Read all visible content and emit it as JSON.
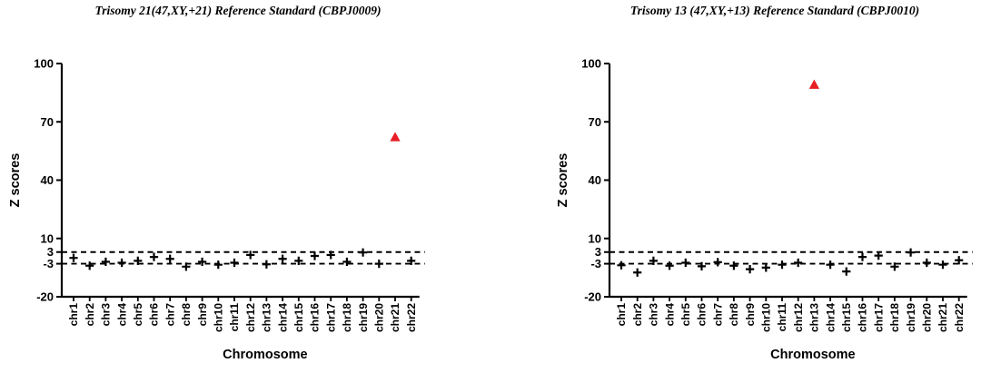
{
  "page": {
    "background": "#ffffff",
    "text_color": "#000000"
  },
  "chart_data": [
    {
      "type": "scatter",
      "title": "Trisomy 21(47,XY,+21) Reference Standard (CBPJ0009)",
      "xlabel": "Chromosome",
      "ylabel": "Z scores",
      "ylim": [
        -20,
        100
      ],
      "yticks": [
        100,
        70,
        40,
        10,
        3,
        -3,
        -20
      ],
      "threshold_lines": [
        3,
        -3
      ],
      "grid": false,
      "legend": "none",
      "categories": [
        "chr1",
        "chr2",
        "chr3",
        "chr4",
        "chr5",
        "chr6",
        "chr7",
        "chr8",
        "chr9",
        "chr10",
        "chr11",
        "chr12",
        "chr13",
        "chr14",
        "chr15",
        "chr16",
        "chr17",
        "chr18",
        "chr19",
        "chr20",
        "chr21",
        "chr22"
      ],
      "trisomy": {
        "chromosome": "chr21",
        "z_score": 62
      },
      "series": [
        {
          "name": "autosome-z-scores",
          "marker": "plus",
          "color": "#000000",
          "values": [
            0,
            -4,
            -2,
            -2.5,
            -1.5,
            0.5,
            -0.5,
            -4.5,
            -2,
            -3.5,
            -2.5,
            1.5,
            -3.3,
            -0.5,
            -1.5,
            1,
            1.5,
            -2,
            2.8,
            -3,
            null,
            -1.5
          ]
        },
        {
          "name": "trisomy-chromosome",
          "marker": "triangle",
          "color": "#e81e25",
          "values": [
            null,
            null,
            null,
            null,
            null,
            null,
            null,
            null,
            null,
            null,
            null,
            null,
            null,
            null,
            null,
            null,
            null,
            null,
            null,
            null,
            62,
            null
          ]
        }
      ]
    },
    {
      "type": "scatter",
      "title": "Trisomy 13 (47,XY,+13) Reference Standard (CBPJ0010)",
      "xlabel": "Chromosome",
      "ylabel": "Z scores",
      "ylim": [
        -20,
        100
      ],
      "yticks": [
        100,
        70,
        40,
        10,
        3,
        -3,
        -20
      ],
      "threshold_lines": [
        3,
        -3
      ],
      "grid": false,
      "legend": "none",
      "categories": [
        "chr1",
        "chr2",
        "chr3",
        "chr4",
        "chr5",
        "chr6",
        "chr7",
        "chr8",
        "chr9",
        "chr10",
        "chr11",
        "chr12",
        "chr13",
        "chr14",
        "chr15",
        "chr16",
        "chr17",
        "chr18",
        "chr19",
        "chr20",
        "chr21",
        "chr22"
      ],
      "trisomy": {
        "chromosome": "chr13",
        "z_score": 89
      },
      "series": [
        {
          "name": "autosome-z-scores",
          "marker": "plus",
          "color": "#000000",
          "values": [
            -3.8,
            -7.5,
            -1.5,
            -4,
            -2.5,
            -4.3,
            -2.2,
            -4,
            -5.8,
            -5,
            -3.5,
            -2.5,
            null,
            -3.5,
            -7,
            0.5,
            1.2,
            -4.5,
            2.8,
            -2.5,
            -3.5,
            -1.2
          ]
        },
        {
          "name": "trisomy-chromosome",
          "marker": "triangle",
          "color": "#e81e25",
          "values": [
            null,
            null,
            null,
            null,
            null,
            null,
            null,
            null,
            null,
            null,
            null,
            null,
            89,
            null,
            null,
            null,
            null,
            null,
            null,
            null,
            null,
            null
          ]
        }
      ]
    }
  ]
}
